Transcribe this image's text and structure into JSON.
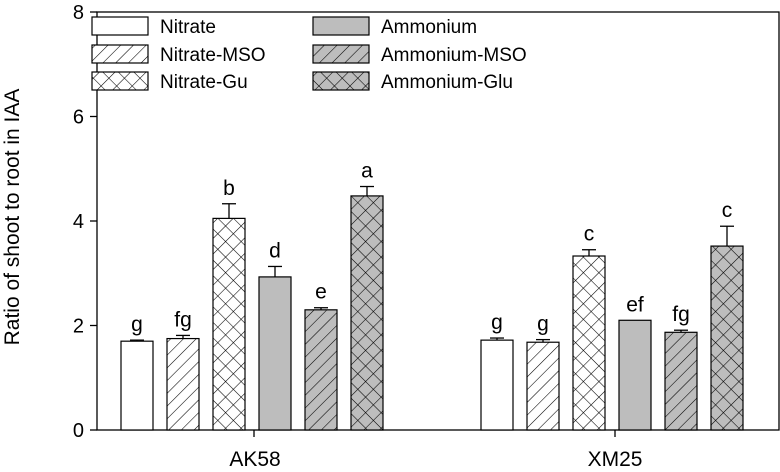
{
  "chart_data": {
    "type": "bar",
    "ylabel": "Ratio of shoot to root in IAA",
    "xlabel": "",
    "ylim": [
      0,
      8
    ],
    "yticks": [
      "0",
      "2",
      "4",
      "6",
      "8"
    ],
    "categories": [
      "AK58",
      "XM25"
    ],
    "legend_position": "top-left",
    "series": [
      {
        "name": "Nitrate",
        "fill": "white",
        "pattern": "none",
        "values": [
          1.7,
          1.72
        ],
        "errors": [
          0.02,
          0.04
        ],
        "letters": [
          "g",
          "g"
        ]
      },
      {
        "name": "Nitrate-MSO",
        "fill": "white",
        "pattern": "diagonal",
        "values": [
          1.75,
          1.68
        ],
        "errors": [
          0.06,
          0.05
        ],
        "letters": [
          "fg",
          "g"
        ]
      },
      {
        "name": "Nitrate-Gu",
        "fill": "white",
        "pattern": "crosshatch",
        "values": [
          4.05,
          3.33
        ],
        "errors": [
          0.28,
          0.12
        ],
        "letters": [
          "b",
          "c"
        ]
      },
      {
        "name": "Ammonium",
        "fill": "gray",
        "pattern": "none",
        "values": [
          2.93,
          2.1
        ],
        "errors": [
          0.2,
          0.0
        ],
        "letters": [
          "d",
          "ef"
        ]
      },
      {
        "name": "Ammonium-MSO",
        "fill": "gray",
        "pattern": "diagonal",
        "values": [
          2.3,
          1.87
        ],
        "errors": [
          0.04,
          0.04
        ],
        "letters": [
          "e",
          "fg"
        ]
      },
      {
        "name": "Ammonium-Glu",
        "fill": "gray",
        "pattern": "crosshatch",
        "values": [
          4.48,
          3.52
        ],
        "errors": [
          0.18,
          0.38
        ],
        "letters": [
          "a",
          "c"
        ]
      }
    ],
    "colors": {
      "gray_fill": "#bdbdbd",
      "white_fill": "#ffffff",
      "stroke": "#000000"
    }
  }
}
